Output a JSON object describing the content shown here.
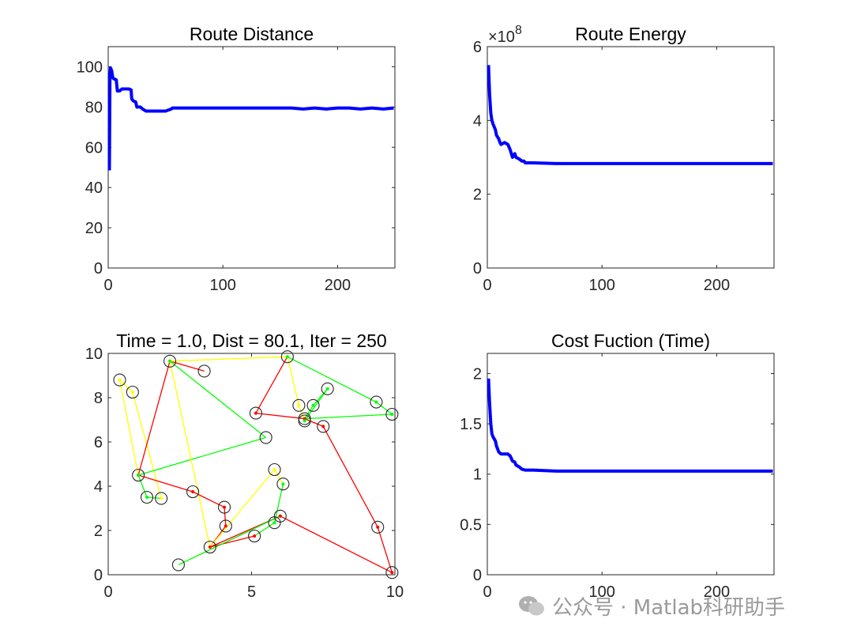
{
  "watermark": "公众号 · Matlab科研助手",
  "colors": {
    "line": "#0000ff",
    "edge_red": "#ff0000",
    "edge_yellow": "#ffff00",
    "edge_green": "#00ff00",
    "marker": "#262626"
  },
  "chart_data": [
    {
      "type": "line",
      "title": "Route Distance",
      "xlim": [
        0,
        250
      ],
      "ylim": [
        0,
        110
      ],
      "xticks": [
        0,
        100,
        200
      ],
      "yticks": [
        0,
        20,
        40,
        60,
        80,
        100
      ],
      "series": [
        {
          "color": "#0000ff",
          "x": [
            1,
            1.5,
            2,
            3,
            4,
            5,
            7,
            8,
            10,
            12,
            15,
            18,
            20,
            20.5,
            22,
            24,
            25,
            28,
            30,
            33,
            40,
            50,
            55,
            56,
            70,
            100,
            130,
            160,
            170,
            180,
            190,
            200,
            210,
            220,
            230,
            240,
            249
          ],
          "y": [
            48.5,
            95,
            99.5,
            98,
            94.5,
            94,
            93.5,
            88,
            88,
            89,
            89,
            89,
            88.5,
            84,
            83,
            82.5,
            80,
            80,
            79,
            78,
            78,
            78,
            79,
            79.5,
            79.5,
            79.5,
            79.5,
            79.5,
            79,
            79.5,
            79,
            79.5,
            79.5,
            79,
            79.5,
            79,
            79.5
          ]
        }
      ]
    },
    {
      "type": "line",
      "title": "Route Energy",
      "exponent_label": "×10",
      "exponent_power": "8",
      "xlim": [
        0,
        250
      ],
      "ylim": [
        0,
        6
      ],
      "xticks": [
        0,
        100,
        200
      ],
      "yticks": [
        0,
        2,
        4,
        6
      ],
      "series": [
        {
          "color": "#0000ff",
          "x": [
            1,
            2,
            3,
            4,
            5,
            7,
            8,
            10,
            11,
            12,
            15,
            18,
            20,
            22,
            24,
            25,
            28,
            30,
            32,
            33,
            40,
            60,
            100,
            150,
            200,
            249
          ],
          "y": [
            5.5,
            4.7,
            4.2,
            4.0,
            3.9,
            3.75,
            3.6,
            3.5,
            3.4,
            3.35,
            3.4,
            3.35,
            3.2,
            3.0,
            3.1,
            3.0,
            2.95,
            2.9,
            2.9,
            2.85,
            2.85,
            2.83,
            2.83,
            2.83,
            2.83,
            2.83
          ]
        }
      ]
    },
    {
      "type": "scatter",
      "title": "Time = 1.0, Dist = 80.1, Iter = 250",
      "xlim": [
        0,
        10
      ],
      "ylim": [
        0,
        10
      ],
      "xticks": [
        0,
        5,
        10
      ],
      "yticks": [
        0,
        2,
        4,
        6,
        8,
        10
      ],
      "nodes": [
        [
          0.4,
          8.8
        ],
        [
          0.85,
          8.25
        ],
        [
          1.05,
          4.5
        ],
        [
          1.35,
          3.5
        ],
        [
          1.85,
          3.45
        ],
        [
          2.15,
          9.65
        ],
        [
          2.95,
          3.75
        ],
        [
          3.35,
          9.2
        ],
        [
          3.55,
          1.25
        ],
        [
          4.05,
          3.05
        ],
        [
          4.1,
          2.2
        ],
        [
          2.45,
          0.45
        ],
        [
          5.1,
          1.75
        ],
        [
          5.15,
          7.3
        ],
        [
          5.5,
          6.2
        ],
        [
          5.8,
          2.35
        ],
        [
          5.8,
          4.75
        ],
        [
          6.0,
          2.65
        ],
        [
          6.1,
          4.1
        ],
        [
          6.25,
          9.85
        ],
        [
          6.65,
          7.65
        ],
        [
          6.85,
          6.95
        ],
        [
          6.85,
          7.05
        ],
        [
          7.15,
          7.65
        ],
        [
          7.5,
          6.7
        ],
        [
          7.65,
          8.4
        ],
        [
          9.35,
          7.8
        ],
        [
          9.4,
          2.15
        ],
        [
          9.9,
          7.25
        ],
        [
          9.9,
          0.1
        ]
      ],
      "edges": [
        {
          "from": [
            0.4,
            8.8
          ],
          "to": [
            1.05,
            4.5
          ],
          "color": "#ffff00"
        },
        {
          "from": [
            1.05,
            4.5
          ],
          "to": [
            1.35,
            3.5
          ],
          "color": "#00ff00"
        },
        {
          "from": [
            1.35,
            3.5
          ],
          "to": [
            1.85,
            3.45
          ],
          "color": "#00ff00"
        },
        {
          "from": [
            1.85,
            3.45
          ],
          "to": [
            0.85,
            8.25
          ],
          "color": "#ffff00"
        },
        {
          "from": [
            0.85,
            8.25
          ],
          "to": [
            0.4,
            8.8
          ],
          "color": "#ffff00"
        },
        {
          "from": [
            1.05,
            4.5
          ],
          "to": [
            2.15,
            9.65
          ],
          "color": "#ff0000"
        },
        {
          "from": [
            1.05,
            4.5
          ],
          "to": [
            2.95,
            3.75
          ],
          "color": "#ff0000"
        },
        {
          "from": [
            1.05,
            4.5
          ],
          "to": [
            5.5,
            6.2
          ],
          "color": "#00ff00"
        },
        {
          "from": [
            2.15,
            9.65
          ],
          "to": [
            3.35,
            9.2
          ],
          "color": "#ff0000"
        },
        {
          "from": [
            2.15,
            9.65
          ],
          "to": [
            6.25,
            9.85
          ],
          "color": "#ffff00"
        },
        {
          "from": [
            2.15,
            9.65
          ],
          "to": [
            3.55,
            1.25
          ],
          "color": "#ffff00"
        },
        {
          "from": [
            2.15,
            9.65
          ],
          "to": [
            5.5,
            6.2
          ],
          "color": "#00ff00"
        },
        {
          "from": [
            2.95,
            3.75
          ],
          "to": [
            4.05,
            3.05
          ],
          "color": "#ff0000"
        },
        {
          "from": [
            4.05,
            3.05
          ],
          "to": [
            4.1,
            2.2
          ],
          "color": "#ff0000"
        },
        {
          "from": [
            4.1,
            2.2
          ],
          "to": [
            3.55,
            1.25
          ],
          "color": "#ff0000"
        },
        {
          "from": [
            3.55,
            1.25
          ],
          "to": [
            5.8,
            4.75
          ],
          "color": "#ffff00"
        },
        {
          "from": [
            5.8,
            4.75
          ],
          "to": [
            6.1,
            4.1
          ],
          "color": "#ffff00"
        },
        {
          "from": [
            6.1,
            4.1
          ],
          "to": [
            5.8,
            2.35
          ],
          "color": "#00ff00"
        },
        {
          "from": [
            5.8,
            2.35
          ],
          "to": [
            5.1,
            1.75
          ],
          "color": "#00ff00"
        },
        {
          "from": [
            5.1,
            1.75
          ],
          "to": [
            3.55,
            1.25
          ],
          "color": "#ff0000"
        },
        {
          "from": [
            3.55,
            1.25
          ],
          "to": [
            6.0,
            2.65
          ],
          "color": "#ff0000"
        },
        {
          "from": [
            6.0,
            2.65
          ],
          "to": [
            2.45,
            0.45
          ],
          "color": "#00ff00"
        },
        {
          "from": [
            6.0,
            2.65
          ],
          "to": [
            9.9,
            0.1
          ],
          "color": "#ff0000"
        },
        {
          "from": [
            9.9,
            0.1
          ],
          "to": [
            9.4,
            2.15
          ],
          "color": "#ff0000"
        },
        {
          "from": [
            9.4,
            2.15
          ],
          "to": [
            7.5,
            6.7
          ],
          "color": "#ff0000"
        },
        {
          "from": [
            7.5,
            6.7
          ],
          "to": [
            6.85,
            7.05
          ],
          "color": "#ff0000"
        },
        {
          "from": [
            6.85,
            7.05
          ],
          "to": [
            5.15,
            7.3
          ],
          "color": "#ff0000"
        },
        {
          "from": [
            5.15,
            7.3
          ],
          "to": [
            6.25,
            9.85
          ],
          "color": "#ff0000"
        },
        {
          "from": [
            6.25,
            9.85
          ],
          "to": [
            6.65,
            7.65
          ],
          "color": "#ffff00"
        },
        {
          "from": [
            6.65,
            7.65
          ],
          "to": [
            6.85,
            6.95
          ],
          "color": "#ffff00"
        },
        {
          "from": [
            6.25,
            9.85
          ],
          "to": [
            9.35,
            7.8
          ],
          "color": "#00ff00"
        },
        {
          "from": [
            9.35,
            7.8
          ],
          "to": [
            9.9,
            7.25
          ],
          "color": "#00ff00"
        },
        {
          "from": [
            9.9,
            7.25
          ],
          "to": [
            6.85,
            7.05
          ],
          "color": "#00ff00"
        },
        {
          "from": [
            6.85,
            6.95
          ],
          "to": [
            7.65,
            8.4
          ],
          "color": "#00ff00"
        },
        {
          "from": [
            7.65,
            8.4
          ],
          "to": [
            7.15,
            7.65
          ],
          "color": "#00ff00"
        },
        {
          "from": [
            7.15,
            7.65
          ],
          "to": [
            6.85,
            7.05
          ],
          "color": "#00ff00"
        }
      ]
    },
    {
      "type": "line",
      "title": "Cost Fuction (Time)",
      "xlim": [
        0,
        250
      ],
      "ylim": [
        0,
        2.2
      ],
      "xticks": [
        0,
        100,
        200
      ],
      "yticks": [
        0,
        0.5,
        1,
        1.5,
        2
      ],
      "ytick_labels": [
        "0",
        "0.5",
        "1",
        "1.5",
        "2"
      ],
      "series": [
        {
          "color": "#0000ff",
          "x": [
            1,
            2,
            3,
            4,
            5,
            7,
            8,
            10,
            12,
            15,
            18,
            20,
            22,
            24,
            25,
            28,
            30,
            33,
            40,
            60,
            100,
            150,
            200,
            249
          ],
          "y": [
            1.95,
            1.7,
            1.5,
            1.4,
            1.37,
            1.33,
            1.28,
            1.22,
            1.2,
            1.2,
            1.2,
            1.18,
            1.13,
            1.12,
            1.09,
            1.07,
            1.05,
            1.04,
            1.04,
            1.03,
            1.03,
            1.03,
            1.03,
            1.03
          ]
        }
      ]
    }
  ]
}
